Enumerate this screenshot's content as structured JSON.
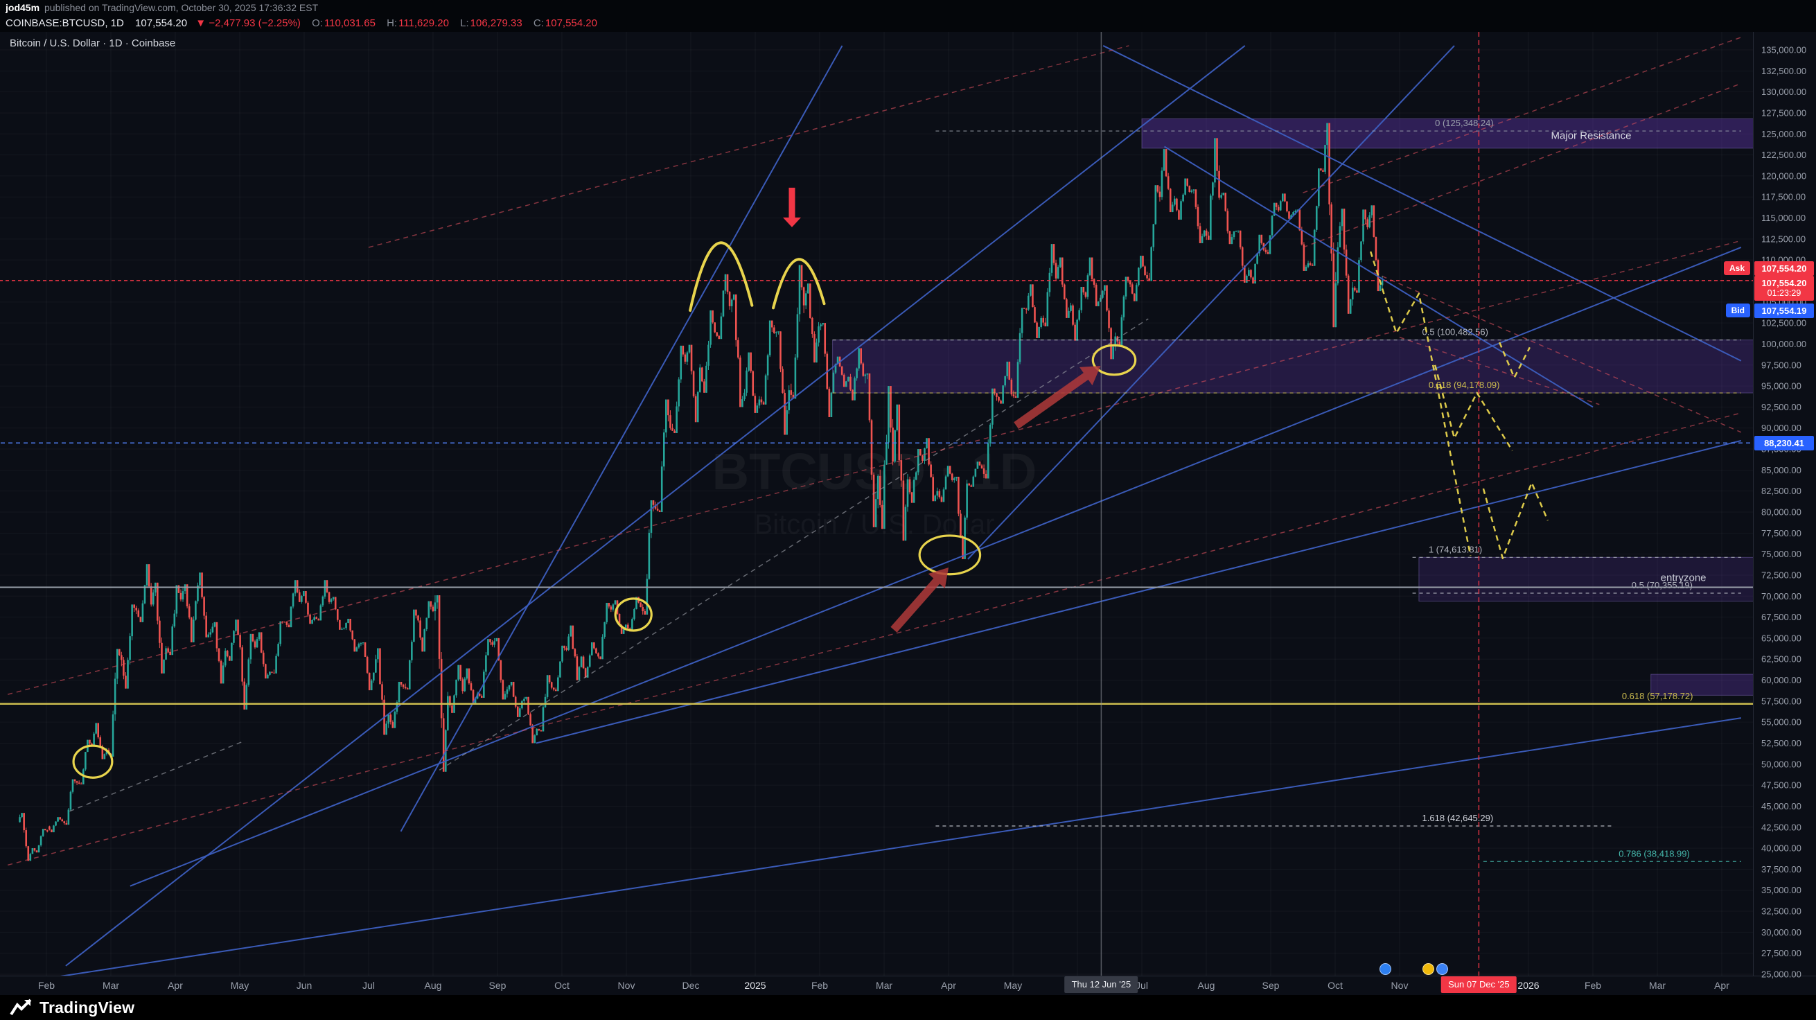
{
  "topbar": {
    "publisher": "jod45m",
    "published_text": "published on TradingView.com, October 30, 2025 17:36:32 EST"
  },
  "symbol_bar": {
    "symbol": "COINBASE:BTCUSD, 1D",
    "last_price": "107,554.20",
    "change_icon": "▼",
    "change": "−2,477.93 (−2.25%)",
    "o_label": "O:",
    "o": "110,031.65",
    "h_label": "H:",
    "h": "111,629.20",
    "l_label": "L:",
    "l": "106,279.33",
    "c_label": "C:",
    "c": "107,554.20"
  },
  "legend": {
    "title": "Bitcoin / U.S. Dollar · 1D · Coinbase"
  },
  "watermark": {
    "line1": "BTCUSD · 1D",
    "line2": "Bitcoin / U.S. Dollar"
  },
  "axis_tags": {
    "ask_label": "Ask",
    "ask_price": "107,554.20",
    "countdown_price": "107,554.20",
    "countdown": "01:23:29",
    "bid_label": "Bid",
    "bid_price": "107,554.19",
    "alert_price": "88,230.41",
    "last_value": 107554.2,
    "alert_value": 88230.41
  },
  "date_markers": {
    "jun": {
      "t": 16.37,
      "label": "Thu 12 Jun '25"
    },
    "dec": {
      "t": 22.23,
      "label": "Sun 07 Dec '25"
    }
  },
  "event_icons": [
    {
      "color": "#2d7ff0",
      "t": 20.77
    },
    {
      "color": "#f0b90b",
      "t": 21.44
    },
    {
      "color": "#3b82f6",
      "t": 21.66
    }
  ],
  "footer": {
    "brand": "TradingView"
  },
  "chart_data": {
    "type": "candlestick",
    "symbol": "BTCUSD",
    "exchange": "Coinbase",
    "timeframe": "1D",
    "title": "Bitcoin / U.S. Dollar · 1D · Coinbase",
    "ohlc_last": {
      "open": 110031.65,
      "high": 111629.2,
      "low": 106279.33,
      "close": 107554.2,
      "change": -2477.93,
      "change_pct": -2.25
    },
    "ylim": [
      25000,
      135000
    ],
    "y_step": 2500,
    "up_color": "#26a69a",
    "down_color": "#ef5350",
    "time_axis": {
      "unit": "months-from-Feb-2024",
      "months": [
        {
          "t": 0,
          "label": "Feb"
        },
        {
          "t": 1,
          "label": "Mar"
        },
        {
          "t": 2,
          "label": "Apr"
        },
        {
          "t": 3,
          "label": "May"
        },
        {
          "t": 4,
          "label": "Jun"
        },
        {
          "t": 5,
          "label": "Jul"
        },
        {
          "t": 6,
          "label": "Aug"
        },
        {
          "t": 7,
          "label": "Sep"
        },
        {
          "t": 8,
          "label": "Oct"
        },
        {
          "t": 9,
          "label": "Nov"
        },
        {
          "t": 10,
          "label": "Dec"
        },
        {
          "t": 11,
          "label": "2025",
          "strong": true
        },
        {
          "t": 12,
          "label": "Feb"
        },
        {
          "t": 13,
          "label": "Mar"
        },
        {
          "t": 14,
          "label": "Apr"
        },
        {
          "t": 15,
          "label": "May"
        },
        {
          "t": 16,
          "label": "Jun"
        },
        {
          "t": 17,
          "label": "Jul"
        },
        {
          "t": 18,
          "label": "Aug"
        },
        {
          "t": 19,
          "label": "Sep"
        },
        {
          "t": 20,
          "label": "Oct"
        },
        {
          "t": 21,
          "label": "Nov"
        },
        {
          "t": 23,
          "label": "2026",
          "strong": true
        },
        {
          "t": 24,
          "label": "Feb"
        },
        {
          "t": 25,
          "label": "Mar"
        },
        {
          "t": 26,
          "label": "Apr"
        }
      ]
    },
    "candles": {
      "t0": -0.43,
      "dt_week": 0.2302,
      "unit": "weekly OHLC, thousands of USD, Jan 2024 - Oct 2025",
      "data": [
        [
          43.1,
          44.2,
          38.5,
          40.0
        ],
        [
          40.0,
          42.3,
          39.5,
          42.0
        ],
        [
          42.6,
          43.7,
          41.9,
          43.2
        ],
        [
          43.2,
          48.2,
          42.8,
          47.8
        ],
        [
          47.8,
          52.9,
          47.6,
          52.1
        ],
        [
          52.1,
          54.9,
          50.6,
          51.7
        ],
        [
          51.7,
          63.7,
          50.9,
          62.4
        ],
        [
          62.4,
          69.0,
          59.0,
          68.3
        ],
        [
          68.3,
          73.8,
          66.9,
          69.0
        ],
        [
          69.0,
          71.6,
          60.8,
          63.8
        ],
        [
          63.8,
          71.3,
          63.0,
          69.6
        ],
        [
          69.6,
          71.4,
          64.5,
          69.4
        ],
        [
          69.4,
          72.8,
          65.1,
          65.7
        ],
        [
          65.7,
          66.9,
          59.6,
          63.5
        ],
        [
          63.5,
          67.2,
          62.3,
          63.9
        ],
        [
          63.9,
          65.5,
          56.5,
          63.9
        ],
        [
          63.9,
          65.7,
          60.2,
          61.0
        ],
        [
          61.0,
          67.0,
          60.8,
          66.9
        ],
        [
          66.9,
          71.9,
          66.3,
          69.3
        ],
        [
          69.3,
          70.6,
          66.7,
          67.5
        ],
        [
          67.5,
          71.9,
          67.1,
          69.3
        ],
        [
          69.3,
          69.9,
          66.0,
          66.2
        ],
        [
          66.2,
          67.3,
          63.4,
          64.3
        ],
        [
          64.3,
          64.5,
          58.8,
          60.9
        ],
        [
          60.9,
          63.8,
          53.5,
          55.9
        ],
        [
          55.9,
          59.8,
          54.3,
          59.2
        ],
        [
          59.2,
          68.4,
          58.9,
          67.1
        ],
        [
          67.1,
          69.4,
          63.4,
          68.2
        ],
        [
          68.2,
          70.1,
          49.1,
          58.1
        ],
        [
          58.1,
          61.8,
          56.1,
          58.7
        ],
        [
          58.7,
          61.4,
          57.1,
          58.4
        ],
        [
          58.4,
          64.9,
          57.9,
          64.2
        ],
        [
          64.2,
          65.0,
          57.7,
          58.9
        ],
        [
          58.9,
          59.8,
          55.6,
          57.5
        ],
        [
          57.5,
          58.0,
          52.5,
          54.2
        ],
        [
          54.2,
          60.6,
          53.9,
          59.1
        ],
        [
          59.1,
          64.1,
          58.7,
          63.6
        ],
        [
          63.6,
          66.5,
          60.0,
          62.8
        ],
        [
          62.8,
          64.5,
          60.3,
          63.2
        ],
        [
          63.2,
          69.2,
          62.5,
          68.4
        ],
        [
          68.4,
          69.5,
          65.5,
          66.6
        ],
        [
          66.6,
          69.9,
          65.8,
          68.7
        ],
        [
          68.7,
          81.4,
          67.8,
          80.4
        ],
        [
          80.4,
          93.4,
          80.0,
          90.0
        ],
        [
          90.0,
          99.8,
          89.4,
          97.9
        ],
        [
          97.9,
          99.9,
          90.7,
          97.2
        ],
        [
          97.2,
          104.0,
          94.2,
          101.4
        ],
        [
          101.4,
          108.3,
          100.6,
          104.5
        ],
        [
          104.5,
          105.9,
          92.5,
          94.2
        ],
        [
          94.2,
          99.0,
          91.8,
          93.4
        ],
        [
          93.4,
          102.8,
          92.8,
          101.3
        ],
        [
          101.3,
          101.5,
          89.2,
          94.5
        ],
        [
          94.5,
          109.4,
          93.5,
          104.6
        ],
        [
          104.6,
          107.2,
          97.8,
          102.1
        ],
        [
          102.1,
          102.5,
          91.3,
          96.6
        ],
        [
          96.6,
          98.5,
          94.9,
          96.1
        ],
        [
          96.1,
          99.5,
          93.3,
          96.2
        ],
        [
          96.2,
          96.5,
          78.2,
          84.3
        ],
        [
          84.3,
          95.0,
          78.0,
          86.0
        ],
        [
          86.0,
          92.8,
          76.6,
          83.9
        ],
        [
          83.9,
          87.5,
          81.1,
          86.1
        ],
        [
          86.1,
          88.8,
          81.3,
          82.5
        ],
        [
          82.5,
          85.5,
          81.2,
          83.8
        ],
        [
          83.8,
          84.2,
          74.4,
          83.4
        ],
        [
          83.4,
          86.0,
          83.0,
          85.2
        ],
        [
          85.2,
          94.7,
          84.0,
          93.7
        ],
        [
          93.7,
          97.9,
          92.9,
          94.0
        ],
        [
          94.0,
          104.3,
          93.6,
          104.1
        ],
        [
          104.1,
          107.1,
          100.7,
          103.1
        ],
        [
          103.1,
          111.9,
          102.1,
          107.8
        ],
        [
          107.8,
          110.3,
          103.1,
          104.6
        ],
        [
          104.6,
          106.8,
          100.4,
          105.6
        ],
        [
          105.6,
          110.3,
          104.5,
          105.5
        ],
        [
          105.5,
          107.0,
          98.2,
          100.9
        ],
        [
          100.9,
          108.0,
          99.8,
          107.1
        ],
        [
          107.1,
          110.5,
          105.1,
          108.2
        ],
        [
          108.2,
          118.9,
          107.5,
          117.5
        ],
        [
          117.5,
          123.2,
          115.7,
          117.3
        ],
        [
          117.3,
          119.7,
          114.8,
          118.1
        ],
        [
          118.1,
          118.4,
          112.0,
          113.5
        ],
        [
          113.5,
          124.5,
          112.4,
          117.4
        ],
        [
          117.4,
          118.0,
          111.9,
          113.4
        ],
        [
          113.4,
          113.5,
          107.3,
          108.8
        ],
        [
          108.8,
          113.0,
          107.2,
          111.2
        ],
        [
          111.2,
          116.8,
          110.7,
          115.9
        ],
        [
          115.9,
          117.9,
          114.9,
          115.7
        ],
        [
          115.7,
          116.0,
          108.7,
          109.6
        ],
        [
          109.6,
          120.9,
          109.3,
          120.5
        ],
        [
          120.5,
          126.3,
          102.0,
          111.5
        ],
        [
          111.5,
          116.1,
          103.6,
          106.7
        ],
        [
          106.7,
          116.0,
          106.1,
          113.9
        ],
        [
          113.9,
          116.5,
          106.3,
          107.554
        ]
      ]
    },
    "trendlines": [
      {
        "t1": 5.5,
        "p1": 42000,
        "t2": 12.35,
        "p2": 135500,
        "c": "blue"
      },
      {
        "t1": 0.3,
        "p1": 26000,
        "t2": 18.6,
        "p2": 135500,
        "c": "blue"
      },
      {
        "t1": 1.3,
        "p1": 35500,
        "t2": 26.3,
        "p2": 111500,
        "c": "blue"
      },
      {
        "t1": 7.6,
        "p1": 52500,
        "t2": 26.3,
        "p2": 88500,
        "c": "blue"
      },
      {
        "t1": 0.0,
        "p1": 24500,
        "t2": 26.3,
        "p2": 55500,
        "c": "blue"
      },
      {
        "t1": 14.3,
        "p1": 74400,
        "t2": 21.85,
        "p2": 135500,
        "c": "blue"
      },
      {
        "t1": 17.35,
        "p1": 123500,
        "t2": 24.0,
        "p2": 92500,
        "c": "blue"
      },
      {
        "t1": 16.4,
        "p1": 135500,
        "t2": 26.3,
        "p2": 98000,
        "c": "blue"
      },
      {
        "t1": 6.1,
        "p1": 49300,
        "t2": 17.1,
        "p2": 103000,
        "c": "gray-dash"
      },
      {
        "t1": 0.36,
        "p1": 44400,
        "t2": 3.05,
        "p2": 52700,
        "c": "gray-dash"
      },
      {
        "t1": -0.6,
        "p1": 58300,
        "t2": 26.3,
        "p2": 112300,
        "c": "red-dash"
      },
      {
        "t1": 5.0,
        "p1": 111500,
        "t2": 16.8,
        "p2": 135500,
        "c": "red-dash"
      },
      {
        "t1": -0.6,
        "p1": 38000,
        "t2": 26.3,
        "p2": 91800,
        "c": "red-dash"
      },
      {
        "t1": 19.5,
        "p1": 118000,
        "t2": 26.3,
        "p2": 136500,
        "c": "red-dash"
      },
      {
        "t1": 19.5,
        "p1": 111500,
        "t2": 26.3,
        "p2": 131000,
        "c": "red-dash"
      },
      {
        "t1": 20.6,
        "p1": 108500,
        "t2": 26.3,
        "p2": 89500,
        "c": "red-dash"
      },
      {
        "t1": 21.0,
        "p1": 100800,
        "t2": 24.1,
        "p2": 92800,
        "c": "red-dash"
      }
    ],
    "hlines": [
      {
        "p": 107554.2,
        "c": "#f23645",
        "dash": "5 4",
        "w": 1.5
      },
      {
        "p": 88230.41,
        "c": "#4f7cf0",
        "dash": "6 5",
        "w": 1.5
      },
      {
        "p": 71050,
        "c": "#9aa0ab",
        "dash": "",
        "w": 2
      },
      {
        "p": 57178.72,
        "c": "#cdbd4f",
        "dash": "",
        "w": 2.5
      }
    ],
    "fib_lines": [
      {
        "p": 125348.24,
        "t1": 13.8,
        "t2": 26.3,
        "label": "0 (125,348.24)",
        "lt": 21.55,
        "c": "#9aa0ab"
      },
      {
        "p": 100482.56,
        "t1": 12.2,
        "t2": 26.3,
        "label": "0.5 (100,482.56)",
        "lt": 21.35,
        "c": "#b2b5be"
      },
      {
        "p": 94178.09,
        "t1": 12.2,
        "t2": 26.3,
        "label": "0.618 (94,178.09)",
        "lt": 21.45,
        "c": "#cdbd4f"
      },
      {
        "p": 74613.81,
        "t1": 21.2,
        "t2": 26.3,
        "label": "1 (74,613.81)",
        "lt": 21.45,
        "c": "#b2b5be"
      },
      {
        "p": 70355.19,
        "t1": 21.2,
        "t2": 26.3,
        "label": "0.5 (70,355.19)",
        "lt": 24.6,
        "c": "#b2b5be"
      },
      {
        "p": 57178.72,
        "t1": 24.3,
        "t2": 26.3,
        "label": "0.618 (57,178.72)",
        "lt": 24.45,
        "c": "#cdbd4f",
        "noline": true
      },
      {
        "p": 42645.29,
        "t1": 13.8,
        "t2": 24.3,
        "label": "1.618 (42,645.29)",
        "lt": 21.35,
        "c": "#d1d4dc"
      },
      {
        "p": 38418.99,
        "t1": 22.3,
        "t2": 26.3,
        "label": "0.786 (38,418.99)",
        "lt": 24.4,
        "c": "#45b8ac"
      }
    ],
    "zones": [
      {
        "p1": 123300,
        "p2": 126800,
        "t1": 17.0,
        "t2": 27,
        "label": "Major Resistance",
        "lt": 23.35,
        "lp": 124800,
        "fill": "rgba(103,58,183,0.40)",
        "lc": "#d5d7e0"
      },
      {
        "p1": 94178,
        "p2": 100482,
        "t1": 12.2,
        "t2": 27,
        "fill": "rgba(103,58,183,0.28)"
      },
      {
        "p1": 69400,
        "p2": 74614,
        "t1": 21.3,
        "t2": 27,
        "label": "entryzone",
        "lt": 25.05,
        "lp": 72200,
        "fill": "rgba(103,58,183,0.20)",
        "lc": "#c9ccd6"
      },
      {
        "p1": 58200,
        "p2": 60700,
        "t1": 24.9,
        "t2": 27,
        "fill": "rgba(103,58,183,0.32)"
      }
    ],
    "vlines": [
      {
        "t": 16.37,
        "c": "#9598a1",
        "dash": "",
        "w": 1.5,
        "o": 0.55
      },
      {
        "t": 22.23,
        "c": "#f23645",
        "dash": "7 5",
        "w": 1.5,
        "o": 0.9
      }
    ],
    "drawings": {
      "color_yellow": "#e8d44d",
      "color_red": "#f23645",
      "color_hand": "#b03a3a",
      "arcs": [
        {
          "x1": 9.99,
          "p1": 104000,
          "cx": 10.45,
          "cp": 119800,
          "x2": 10.95,
          "p2": 104600
        },
        {
          "x1": 11.28,
          "p1": 104300,
          "cx": 11.67,
          "cp": 115600,
          "x2": 12.07,
          "p2": 104800
        }
      ],
      "circles": [
        {
          "t": 0.72,
          "p": 50300,
          "rt": 0.3,
          "rp": 1900
        },
        {
          "t": 9.11,
          "p": 67800,
          "rt": 0.28,
          "rp": 1900
        },
        {
          "t": 14.02,
          "p": 74900,
          "rt": 0.47,
          "rp": 2300
        },
        {
          "t": 16.57,
          "p": 98100,
          "rt": 0.33,
          "rp": 1750
        }
      ],
      "zigzags": [
        [
          [
            20.55,
            111000
          ],
          [
            20.95,
            101300
          ],
          [
            21.3,
            106000
          ],
          [
            22.1,
            74800
          ]
        ],
        [
          [
            21.55,
            97500
          ],
          [
            21.85,
            88800
          ],
          [
            22.2,
            94200
          ],
          [
            22.75,
            87300
          ]
        ],
        [
          [
            22.3,
            82800
          ],
          [
            22.6,
            74500
          ],
          [
            23.05,
            83500
          ],
          [
            23.3,
            79000
          ]
        ],
        [
          [
            22.55,
            100200
          ],
          [
            22.78,
            96000
          ],
          [
            23.02,
            99600
          ]
        ]
      ],
      "hand_arrows": [
        {
          "t1": 13.15,
          "p1": 66000,
          "t2": 14.0,
          "p2": 73400
        },
        {
          "t1": 15.05,
          "p1": 90300,
          "t2": 16.36,
          "p2": 97400
        }
      ],
      "down_arrow": {
        "t": 11.57,
        "p1": 118600,
        "p2": 113900
      }
    }
  }
}
